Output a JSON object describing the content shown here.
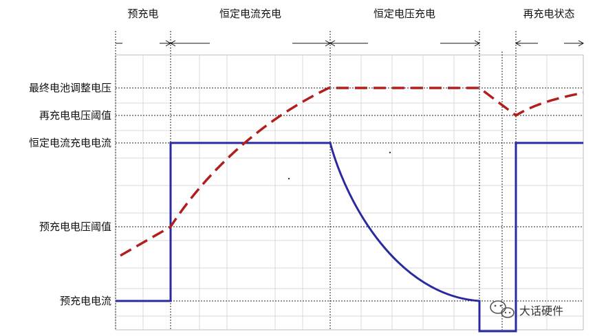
{
  "phases": [
    "预充电",
    "恒定电流充电",
    "恒定电压充电",
    "再充电状态"
  ],
  "levels": [
    "最终电池调整电压",
    "再充电电压阈值",
    "恒定电流充电电流",
    "预充电电压阈值",
    "预充电电流"
  ],
  "watermark": "大话硬件",
  "colors": {
    "voltage": "#b01e1e",
    "current": "#2a2aa0",
    "grid": "#d9d9d9",
    "guide": "#222222"
  }
}
